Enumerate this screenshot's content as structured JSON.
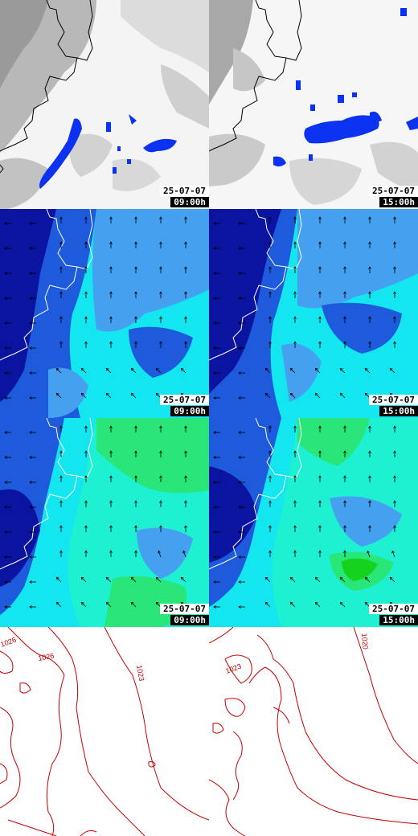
{
  "panels": [
    {
      "id": "precip-0900",
      "row": "precipitation",
      "date": "25-07-07",
      "time": "09:00h"
    },
    {
      "id": "precip-1500",
      "row": "precipitation",
      "date": "25-07-07",
      "time": "15:00h"
    },
    {
      "id": "wind-a-0900",
      "row": "wind-a",
      "date": "25-07-07",
      "time": "09:00h"
    },
    {
      "id": "wind-a-1500",
      "row": "wind-a",
      "date": "25-07-07",
      "time": "15:00h"
    },
    {
      "id": "wind-b-0900",
      "row": "wind-b",
      "date": "25-07-07",
      "time": "09:00h"
    },
    {
      "id": "wind-b-1500",
      "row": "wind-b",
      "date": "25-07-07",
      "time": "15:00h"
    },
    {
      "id": "pressure-0900",
      "row": "pressure"
    },
    {
      "id": "pressure-1500",
      "row": "pressure"
    }
  ],
  "contour_labels": {
    "left": [
      "1026",
      "1026",
      "1023"
    ],
    "right": [
      "1023",
      "1020"
    ]
  },
  "colors": {
    "cloud_gray": "#c8c8c8",
    "precip_blue": "#0a32f0",
    "wind_dark": "#0a14a0",
    "wind_mid": "#1e5adc",
    "wind_light": "#46a0f0",
    "wind_cyan": "#14e6f0",
    "wind_aqua": "#1ef0d2",
    "wind_green": "#28e678",
    "wind_bright_green": "#14d21e",
    "coastline": "#ffffff",
    "coastline_dark": "#000000",
    "isobar": "#c80000"
  }
}
